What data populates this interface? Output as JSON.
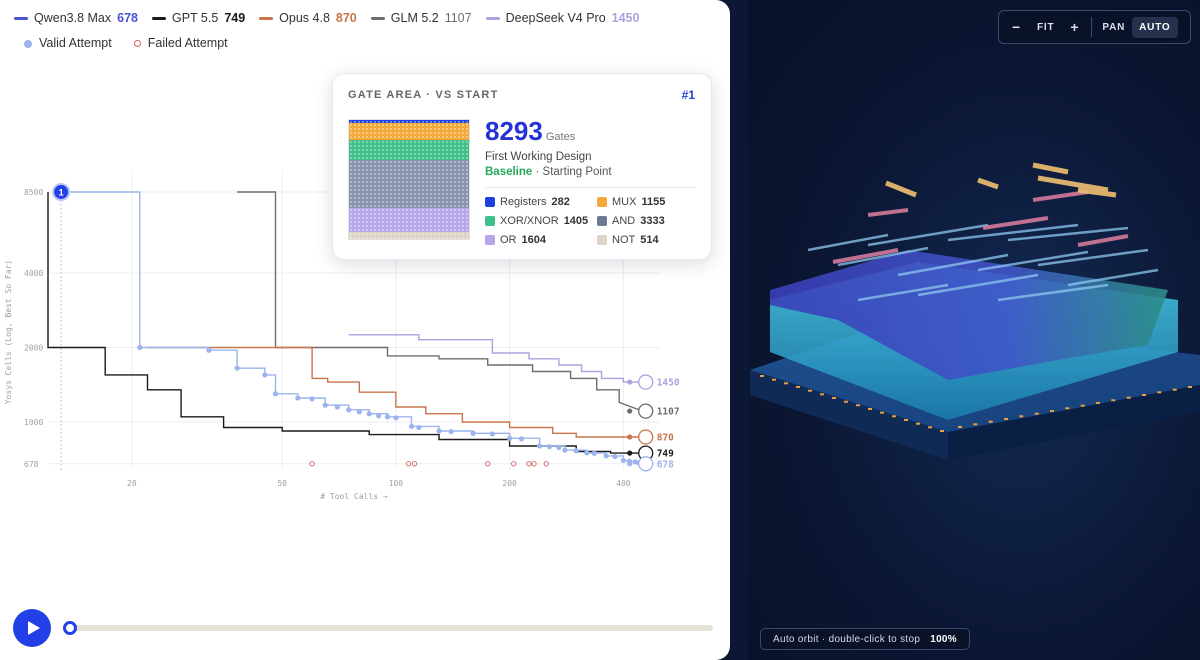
{
  "legend": [
    {
      "model": "Qwen3.8 Max",
      "value": "678",
      "color": "#4a52d6"
    },
    {
      "model": "GPT 5.5",
      "value": "749",
      "color": "#1a1a1a"
    },
    {
      "model": "Opus 4.8",
      "value": "870",
      "color": "#c8754a"
    },
    {
      "model": "GLM 5.2",
      "value": "1107",
      "color": "#6d6d6d"
    },
    {
      "model": "DeepSeek V4 Pro",
      "value": "1450",
      "color": "#a9a3e0"
    }
  ],
  "attempt_legend": {
    "valid": "Valid Attempt",
    "failed": "Failed Attempt"
  },
  "chart_data": {
    "type": "line",
    "ylabel": "Yosys Cells (Log, Best So Far)",
    "xlabel": "# Tool Calls →",
    "x_scale": "log",
    "y_scale": "log",
    "x_ticks": [
      "20",
      "50",
      "100",
      "200",
      "400"
    ],
    "y_ticks": [
      "8500",
      "4000",
      "2000",
      "1000",
      "678"
    ],
    "xlim": [
      12,
      500
    ],
    "ylim": [
      640,
      9500
    ],
    "start_marker": "1",
    "series": [
      {
        "name": "GLM 5.2",
        "color": "#6d6d6d",
        "end_label": "1107",
        "points": [
          [
            38,
            8500
          ],
          [
            48,
            8500
          ],
          [
            48,
            2000
          ],
          [
            95,
            2000
          ],
          [
            95,
            1850
          ],
          [
            130,
            1850
          ],
          [
            130,
            1800
          ],
          [
            175,
            1800
          ],
          [
            175,
            1700
          ],
          [
            230,
            1700
          ],
          [
            230,
            1600
          ],
          [
            290,
            1600
          ],
          [
            290,
            1500
          ],
          [
            340,
            1500
          ],
          [
            340,
            1350
          ],
          [
            390,
            1350
          ],
          [
            390,
            1200
          ],
          [
            420,
            1150
          ],
          [
            450,
            1107
          ]
        ]
      },
      {
        "name": "DeepSeek V4 Pro",
        "color": "#a9a3e0",
        "end_label": "1450",
        "points": [
          [
            75,
            2250
          ],
          [
            115,
            2250
          ],
          [
            115,
            2150
          ],
          [
            180,
            2150
          ],
          [
            180,
            1900
          ],
          [
            225,
            1900
          ],
          [
            225,
            1800
          ],
          [
            270,
            1800
          ],
          [
            270,
            1700
          ],
          [
            310,
            1700
          ],
          [
            310,
            1600
          ],
          [
            350,
            1600
          ],
          [
            350,
            1500
          ],
          [
            400,
            1500
          ],
          [
            400,
            1450
          ],
          [
            450,
            1450
          ]
        ]
      },
      {
        "name": "Opus 4.8",
        "color": "#c8754a",
        "end_label": "870",
        "points": [
          [
            22,
            2000
          ],
          [
            60,
            2000
          ],
          [
            60,
            1500
          ],
          [
            66,
            1500
          ],
          [
            66,
            1450
          ],
          [
            80,
            1450
          ],
          [
            80,
            1320
          ],
          [
            100,
            1320
          ],
          [
            100,
            1150
          ],
          [
            120,
            1150
          ],
          [
            120,
            1080
          ],
          [
            150,
            1080
          ],
          [
            150,
            1000
          ],
          [
            200,
            1000
          ],
          [
            200,
            950
          ],
          [
            260,
            950
          ],
          [
            260,
            900
          ],
          [
            300,
            900
          ],
          [
            300,
            870
          ],
          [
            450,
            870
          ]
        ]
      },
      {
        "name": "GPT 5.5",
        "color": "#1a1a1a",
        "end_label": "749",
        "points": [
          [
            12,
            8500
          ],
          [
            12,
            2000
          ],
          [
            17,
            2000
          ],
          [
            17,
            1550
          ],
          [
            22,
            1550
          ],
          [
            22,
            1350
          ],
          [
            27,
            1350
          ],
          [
            27,
            1050
          ],
          [
            35,
            1050
          ],
          [
            35,
            950
          ],
          [
            50,
            950
          ],
          [
            50,
            920
          ],
          [
            85,
            920
          ],
          [
            85,
            890
          ],
          [
            130,
            890
          ],
          [
            130,
            850
          ],
          [
            200,
            850
          ],
          [
            200,
            800
          ],
          [
            300,
            800
          ],
          [
            300,
            760
          ],
          [
            370,
            760
          ],
          [
            370,
            749
          ],
          [
            450,
            749
          ]
        ]
      },
      {
        "name": "Qwen3.8 Max",
        "color": "#9cb4ee",
        "end_label": "678",
        "points": [
          [
            13,
            8500
          ],
          [
            21,
            8500
          ],
          [
            21,
            2000
          ],
          [
            32,
            2000
          ],
          [
            32,
            1950
          ],
          [
            38,
            1950
          ],
          [
            38,
            1650
          ],
          [
            45,
            1650
          ],
          [
            45,
            1550
          ],
          [
            48,
            1550
          ],
          [
            48,
            1300
          ],
          [
            55,
            1300
          ],
          [
            55,
            1250
          ],
          [
            65,
            1250
          ],
          [
            65,
            1170
          ],
          [
            75,
            1170
          ],
          [
            75,
            1120
          ],
          [
            85,
            1120
          ],
          [
            85,
            1080
          ],
          [
            95,
            1080
          ],
          [
            95,
            1050
          ],
          [
            110,
            1050
          ],
          [
            110,
            960
          ],
          [
            130,
            960
          ],
          [
            130,
            920
          ],
          [
            160,
            920
          ],
          [
            160,
            900
          ],
          [
            200,
            900
          ],
          [
            200,
            860
          ],
          [
            240,
            860
          ],
          [
            240,
            800
          ],
          [
            280,
            800
          ],
          [
            280,
            770
          ],
          [
            320,
            770
          ],
          [
            320,
            750
          ],
          [
            360,
            750
          ],
          [
            360,
            730
          ],
          [
            400,
            730
          ],
          [
            400,
            700
          ],
          [
            430,
            690
          ],
          [
            450,
            678
          ]
        ]
      }
    ],
    "valid_points": [
      [
        21,
        2000
      ],
      [
        32,
        1950
      ],
      [
        38,
        1650
      ],
      [
        45,
        1550
      ],
      [
        48,
        1300
      ],
      [
        55,
        1250
      ],
      [
        60,
        1240
      ],
      [
        65,
        1170
      ],
      [
        70,
        1150
      ],
      [
        75,
        1120
      ],
      [
        80,
        1100
      ],
      [
        85,
        1080
      ],
      [
        90,
        1060
      ],
      [
        95,
        1050
      ],
      [
        100,
        1040
      ],
      [
        110,
        960
      ],
      [
        115,
        950
      ],
      [
        130,
        920
      ],
      [
        140,
        915
      ],
      [
        160,
        900
      ],
      [
        180,
        895
      ],
      [
        200,
        860
      ],
      [
        215,
        855
      ],
      [
        240,
        800
      ],
      [
        255,
        795
      ],
      [
        270,
        790
      ],
      [
        280,
        770
      ],
      [
        300,
        765
      ],
      [
        320,
        750
      ],
      [
        335,
        748
      ],
      [
        360,
        730
      ],
      [
        380,
        725
      ],
      [
        400,
        700
      ],
      [
        415,
        695
      ],
      [
        430,
        690
      ],
      [
        440,
        684
      ]
    ],
    "failed_points": [
      [
        60,
        678
      ],
      [
        108,
        678
      ],
      [
        112,
        678
      ],
      [
        175,
        678
      ],
      [
        205,
        678
      ],
      [
        225,
        678
      ],
      [
        232,
        678
      ],
      [
        250,
        678
      ]
    ]
  },
  "card": {
    "title": "GATE AREA · VS START",
    "rank": "#1",
    "gates": "8293",
    "gates_unit": "Gates",
    "design": "First Working Design",
    "baseline": "Baseline",
    "baseline_suffix": "· Starting Point",
    "items": [
      {
        "label": "Registers",
        "value": "282",
        "color": "#1f3fe0"
      },
      {
        "label": "MUX",
        "value": "1155",
        "color": "#f4a93a"
      },
      {
        "label": "XOR/XNOR",
        "value": "1405",
        "color": "#3fbf8a"
      },
      {
        "label": "AND",
        "value": "3333",
        "color": "#6b7896"
      },
      {
        "label": "OR",
        "value": "1604",
        "color": "#b8a6e8"
      },
      {
        "label": "NOT",
        "value": "514",
        "color": "#dcd5c5"
      }
    ]
  },
  "viewer": {
    "controls": {
      "zoom_out": "−",
      "fit": "FIT",
      "zoom_in": "+",
      "pan": "PAN",
      "auto": "AUTO"
    },
    "status_text": "Auto orbit · double-click to stop",
    "zoom": "100%"
  }
}
